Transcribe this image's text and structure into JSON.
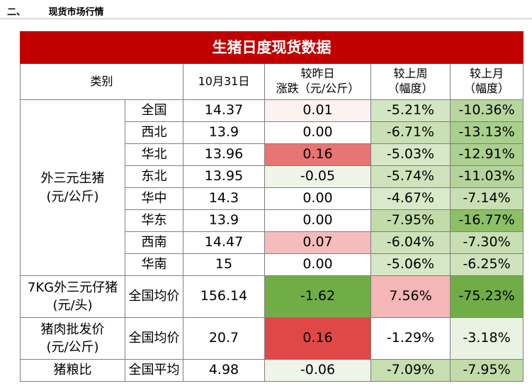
{
  "section": {
    "number": "二、",
    "title": "现货市场行情"
  },
  "table": {
    "title": "生猪日度现货数据",
    "headers": {
      "category": "类别",
      "date": "10月31日",
      "change_line1": "较昨日",
      "change_line2": "涨跌（元/公斤）",
      "week_line1": "较上周",
      "week_line2": "（幅度）",
      "month_line1": "较上月",
      "month_line2": "（幅度）"
    },
    "groups": [
      {
        "name_line1": "外三元生猪",
        "name_line2": "(元/公斤)",
        "rows": [
          {
            "region": "全国",
            "price": "14.37",
            "change": "0.01",
            "week": "-5.21%",
            "month": "-10.36%",
            "change_bg": "#fdf2f2",
            "week_bg": "#d3e6c3",
            "month_bg": "#b7d69e"
          },
          {
            "region": "西北",
            "price": "13.9",
            "change": "0.00",
            "week": "-6.71%",
            "month": "-13.13%",
            "change_bg": "#ffffff",
            "week_bg": "#c9e0b5",
            "month_bg": "#a9cf8d"
          },
          {
            "region": "华北",
            "price": "13.96",
            "change": "0.16",
            "week": "-5.03%",
            "month": "-12.91%",
            "change_bg": "#e87474",
            "week_bg": "#d6e8c7",
            "month_bg": "#abd08f"
          },
          {
            "region": "东北",
            "price": "13.95",
            "change": "-0.05",
            "week": "-5.74%",
            "month": "-11.03%",
            "change_bg": "#eef5e8",
            "week_bg": "#cfe3bd",
            "month_bg": "#b4d49b"
          },
          {
            "region": "华中",
            "price": "14.3",
            "change": "0.00",
            "week": "-4.67%",
            "month": "-7.14%",
            "change_bg": "#ffffff",
            "week_bg": "#d9eaca",
            "month_bg": "#c8dfb3"
          },
          {
            "region": "华东",
            "price": "13.9",
            "change": "0.00",
            "week": "-7.95%",
            "month": "-16.77%",
            "change_bg": "#ffffff",
            "week_bg": "#c1dba9",
            "month_bg": "#8cbf66"
          },
          {
            "region": "西南",
            "price": "14.47",
            "change": "0.07",
            "week": "-6.04%",
            "month": "-7.30%",
            "change_bg": "#f5bcbc",
            "week_bg": "#cde2ba",
            "month_bg": "#c7dfb2"
          },
          {
            "region": "华南",
            "price": "15",
            "change": "0.00",
            "week": "-5.06%",
            "month": "-6.25%",
            "change_bg": "#ffffff",
            "week_bg": "#d6e8c7",
            "month_bg": "#cfe3bd"
          }
        ]
      }
    ],
    "singles": [
      {
        "name_line1": "7KG外三元仔猪",
        "name_line2": "(元/头)",
        "region": "全国均价",
        "price": "156.14",
        "change": "-1.62",
        "week": "7.56%",
        "month": "-75.23%",
        "change_bg": "#70ad47",
        "week_bg": "#f4b6b6",
        "month_bg": "#70ad47",
        "height": "big"
      },
      {
        "name_line1": "猪肉批发价",
        "name_line2": "(元/公斤)",
        "region": "全国均价",
        "price": "20.7",
        "change": "0.16",
        "week": "-1.29%",
        "month": "-3.18%",
        "change_bg": "#e04848",
        "week_bg": "#ffffff",
        "month_bg": "#eaf3e2",
        "height": "big"
      },
      {
        "name_line1": "猪粮比",
        "name_line2": "",
        "region": "全国平均",
        "price": "4.98",
        "change": "-0.06",
        "week": "-7.09%",
        "month": "-7.95%",
        "change_bg": "#eef5e8",
        "week_bg": "#c6deb0",
        "month_bg": "#c1dba9",
        "height": "data"
      }
    ]
  }
}
